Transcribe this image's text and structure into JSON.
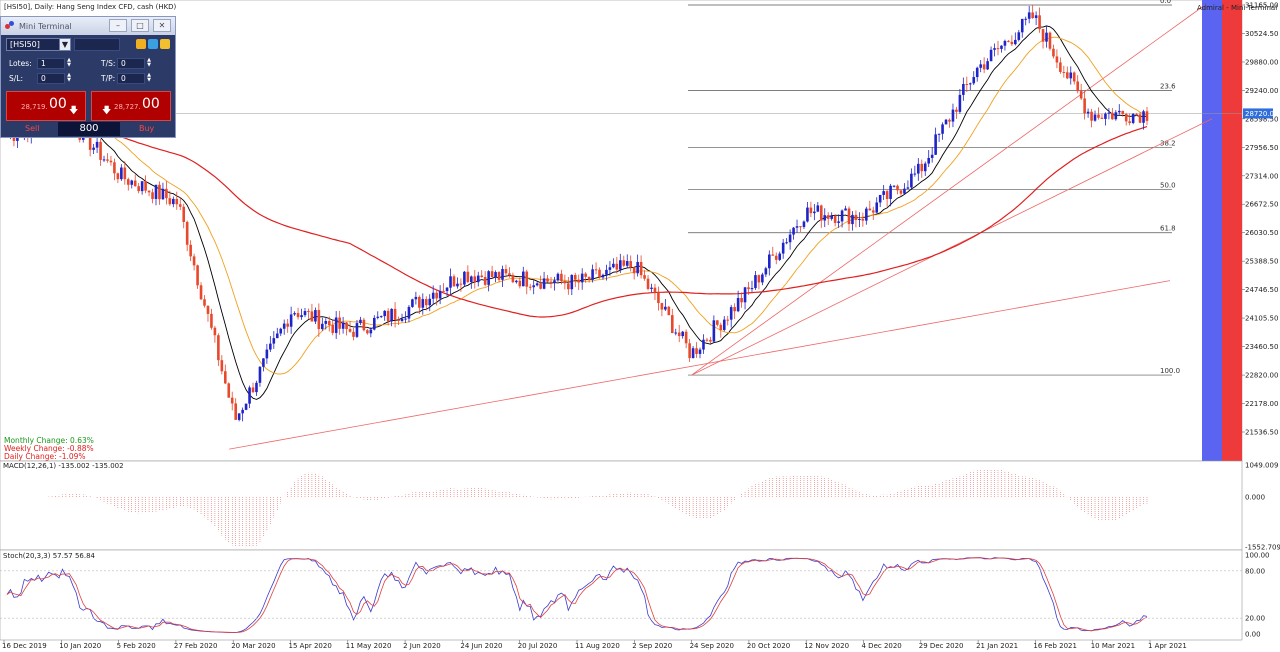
{
  "header": {
    "title": "[HSI50], Daily:  Hang Seng Index CFD, cash (HKD)",
    "right_label": "Admiral - Mini Terminal"
  },
  "mini_terminal": {
    "title": "Mini Terminal",
    "symbol": "[HSI50]",
    "lots_label": "Lotes:",
    "lots_value": "1",
    "sl_label": "S/L:",
    "sl_value": "0",
    "ts_label": "T/S:",
    "ts_value": "0",
    "tp_label": "T/P:",
    "tp_value": "0",
    "sell_price_small": "28,719.",
    "sell_price_big": "00",
    "buy_price_small": "28,727.",
    "buy_price_big": "00",
    "sell_label": "Sell",
    "buy_label": "Buy",
    "volume": "800"
  },
  "changes": {
    "monthly": "Monthly Change: 0.63%",
    "weekly": "Weekly Change: -0.88%",
    "daily": "Daily Change: -1.09%"
  },
  "indicators": {
    "macd_label": "MACD(12,26,1) -135.002 -135.002",
    "stoch_label": "Stoch(20,3,3) 57.57 56.84"
  },
  "colors": {
    "bull": "#1f24c8",
    "bear": "#e8482b",
    "ma_fast": "#000000",
    "ma_mid": "#f0a020",
    "ma_slow": "#e02020",
    "panel_blue": "#5a64f0",
    "panel_red": "#ee3a3a"
  },
  "chart_data": {
    "type": "candlestick",
    "title": "[HSI50], Daily:  Hang Seng Index CFD, cash (HKD)",
    "price_axis": [
      "31165.00",
      "30524.50",
      "29880.00",
      "29240.00",
      "28598.50",
      "27956.50",
      "27314.00",
      "26672.50",
      "26030.50",
      "25388.50",
      "24746.50",
      "24105.50",
      "23460.50",
      "22820.00",
      "22178.00",
      "21536.50"
    ],
    "current_price_tag": "28720.00",
    "x_axis": [
      "16 Dec 2019",
      "10 Jan 2020",
      "5 Feb 2020",
      "27 Feb 2020",
      "20 Mar 2020",
      "15 Apr 2020",
      "11 May 2020",
      "2 Jun 2020",
      "24 Jun 2020",
      "20 Jul 2020",
      "11 Aug 2020",
      "2 Sep 2020",
      "24 Sep 2020",
      "20 Oct 2020",
      "12 Nov 2020",
      "4 Dec 2020",
      "29 Dec 2020",
      "21 Jan 2021",
      "16 Feb 2021",
      "10 Mar 2021",
      "1 Apr 2021"
    ],
    "fibonacci": [
      {
        "level": "0.0",
        "price": 31165
      },
      {
        "level": "23.6",
        "price": 29240
      },
      {
        "level": "38.2",
        "price": 27956
      },
      {
        "level": "50.0",
        "price": 27000
      },
      {
        "level": "61.8",
        "price": 26030
      },
      {
        "level": "100.0",
        "price": 22820
      }
    ],
    "close_path": [
      {
        "date": "16 Dec 2019",
        "close": 28200
      },
      {
        "date": "10 Jan 2020",
        "close": 28700
      },
      {
        "date": "5 Feb 2020",
        "close": 27300
      },
      {
        "date": "27 Feb 2020",
        "close": 26700
      },
      {
        "date": "20 Mar 2020",
        "close": 21800
      },
      {
        "date": "15 Apr 2020",
        "close": 24300
      },
      {
        "date": "11 May 2020",
        "close": 23800
      },
      {
        "date": "2 Jun 2020",
        "close": 24300
      },
      {
        "date": "24 Jun 2020",
        "close": 25100
      },
      {
        "date": "20 Jul 2020",
        "close": 25000
      },
      {
        "date": "11 Aug 2020",
        "close": 24900
      },
      {
        "date": "2 Sep 2020",
        "close": 25300
      },
      {
        "date": "24 Sep 2020",
        "close": 23300
      },
      {
        "date": "20 Oct 2020",
        "close": 24700
      },
      {
        "date": "12 Nov 2020",
        "close": 26500
      },
      {
        "date": "4 Dec 2020",
        "close": 26400
      },
      {
        "date": "29 Dec 2020",
        "close": 27400
      },
      {
        "date": "21 Jan 2021",
        "close": 29700
      },
      {
        "date": "16 Feb 2021",
        "close": 30900
      },
      {
        "date": "10 Mar 2021",
        "close": 28700
      },
      {
        "date": "1 Apr 2021",
        "close": 28720
      }
    ],
    "macd_axis": [
      "1049.009",
      "0.000",
      "-1552.709"
    ],
    "stoch_axis": [
      "100.00",
      "80.00",
      "20.00",
      "0.00"
    ]
  }
}
